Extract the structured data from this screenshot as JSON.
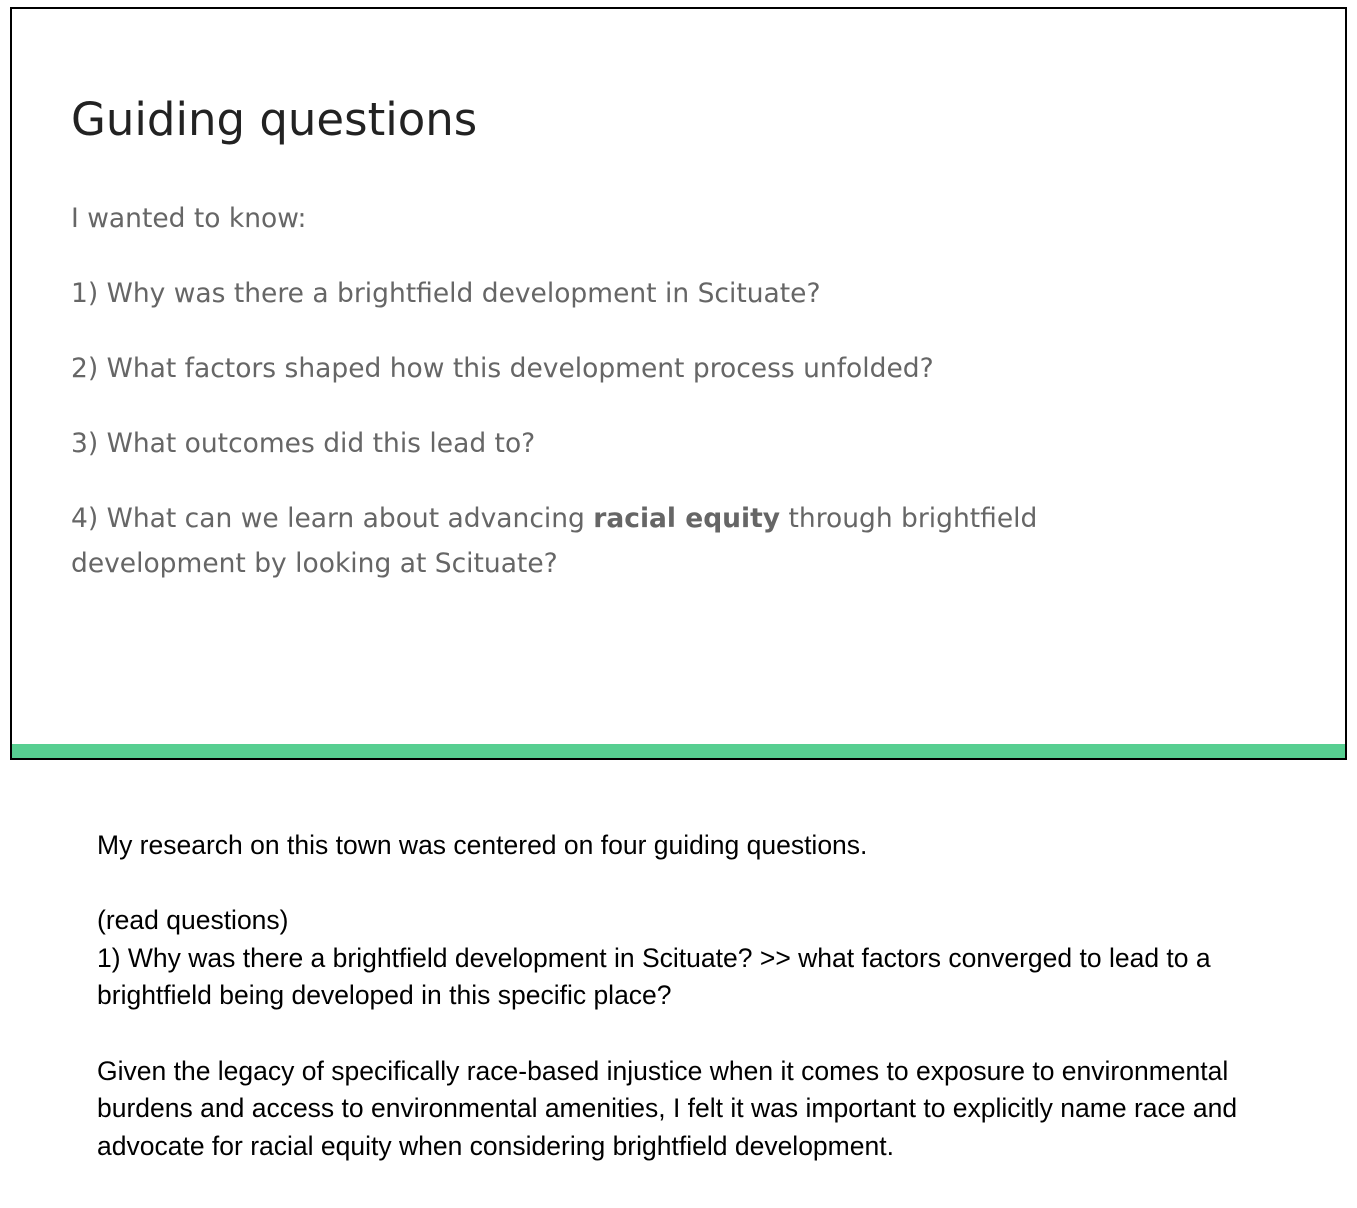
{
  "slide": {
    "title": "Guiding questions",
    "intro": "I wanted to know:",
    "questions": [
      "1) Why was there a brightfield development in Scituate?",
      "2) What factors shaped how this development process unfolded?",
      "3) What outcomes did this lead to?"
    ],
    "question4": {
      "before": "4)  What can we learn about advancing ",
      "emphasis": "racial equity",
      "after": " through brightfield development by looking at Scituate?"
    },
    "accent_color": "#57cf91"
  },
  "notes": {
    "line1": "My research on this town was centered on four guiding questions.",
    "line2": "(read questions)",
    "line3": "1) Why was there a brightfield development in Scituate? >> what factors converged to lead to a brightfield being developed in this specific place?",
    "line4": "Given the legacy of specifically race-based injustice when it comes to exposure to environmental burdens and access to environmental amenities, I felt it was important to explicitly name race and advocate for racial equity when considering brightfield development."
  }
}
